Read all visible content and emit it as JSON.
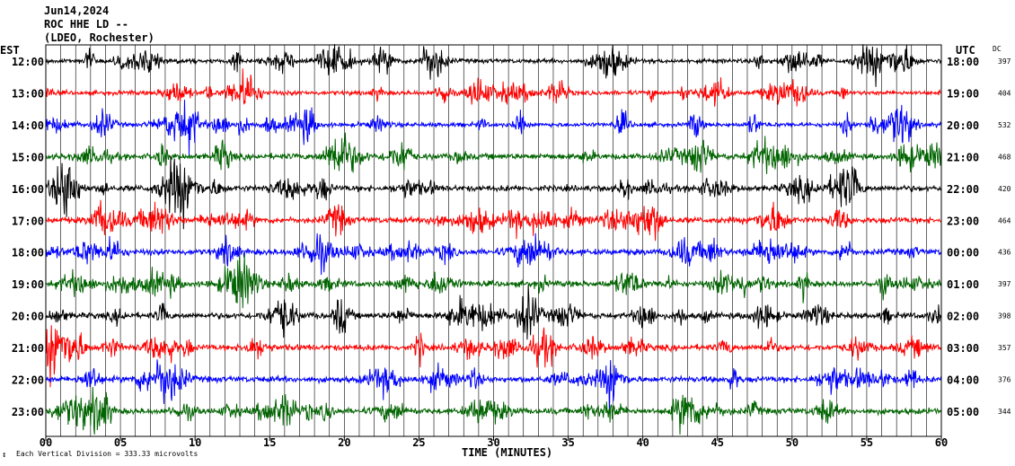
{
  "header": {
    "date": "Jun14,2024",
    "station": "ROC HHE LD --",
    "network": "(LDEO, Rochester)"
  },
  "labels": {
    "left_timezone": "EST",
    "right_timezone": "UTC",
    "dc_header": "DC",
    "xlabel": "TIME (MINUTES)",
    "scale_note": "Each Vertical Division =  333.33 microvolts"
  },
  "chart_data": {
    "type": "line",
    "title": "ROC HHE LD --",
    "xlabel": "TIME (MINUTES)",
    "xlim": [
      0,
      60
    ],
    "x_ticks": [
      "00",
      "05",
      "10",
      "15",
      "20",
      "25",
      "30",
      "35",
      "40",
      "45",
      "50",
      "55",
      "60"
    ],
    "grid": true,
    "series_colors": [
      "#000000",
      "#ff0000",
      "#0000ff",
      "#006400"
    ],
    "rows": [
      {
        "est": "12:00",
        "utc": "18:00",
        "dc": "397",
        "color": "#000000"
      },
      {
        "est": "13:00",
        "utc": "19:00",
        "dc": "404",
        "color": "#ff0000"
      },
      {
        "est": "14:00",
        "utc": "20:00",
        "dc": "532",
        "color": "#0000ff"
      },
      {
        "est": "15:00",
        "utc": "21:00",
        "dc": "468",
        "color": "#006400"
      },
      {
        "est": "16:00",
        "utc": "22:00",
        "dc": "420",
        "color": "#000000"
      },
      {
        "est": "17:00",
        "utc": "23:00",
        "dc": "464",
        "color": "#ff0000"
      },
      {
        "est": "18:00",
        "utc": "00:00",
        "dc": "436",
        "color": "#0000ff"
      },
      {
        "est": "19:00",
        "utc": "01:00",
        "dc": "397",
        "color": "#006400"
      },
      {
        "est": "20:00",
        "utc": "02:00",
        "dc": "398",
        "color": "#000000"
      },
      {
        "est": "21:00",
        "utc": "03:00",
        "dc": "357",
        "color": "#ff0000"
      },
      {
        "est": "22:00",
        "utc": "04:00",
        "dc": "376",
        "color": "#0000ff"
      },
      {
        "est": "23:00",
        "utc": "05:00",
        "dc": "344",
        "color": "#006400"
      }
    ]
  }
}
